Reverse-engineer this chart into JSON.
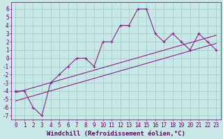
{
  "xlabel": "Windchill (Refroidissement éolien,°C)",
  "bg_color": "#c8e8e8",
  "grid_color": "#a0c8c8",
  "line_color": "#882288",
  "xlim": [
    -0.5,
    23.5
  ],
  "ylim": [
    -7.5,
    6.8
  ],
  "xticks": [
    0,
    1,
    2,
    3,
    4,
    5,
    6,
    7,
    8,
    9,
    10,
    11,
    12,
    13,
    14,
    15,
    16,
    17,
    18,
    19,
    20,
    21,
    22,
    23
  ],
  "yticks": [
    6,
    5,
    4,
    3,
    2,
    1,
    0,
    -1,
    -2,
    -3,
    -4,
    -5,
    -6,
    -7
  ],
  "measured_x": [
    0,
    1,
    2,
    3,
    4,
    5,
    6,
    7,
    8,
    9,
    10,
    11,
    12,
    13,
    14,
    15,
    16,
    17,
    18,
    19,
    20,
    21,
    22,
    23
  ],
  "measured_y": [
    -4,
    -4,
    -6,
    -7,
    -3,
    -2,
    -1,
    0,
    0,
    -1,
    2,
    2,
    4,
    4,
    6,
    6,
    3,
    2,
    3,
    2,
    1,
    3,
    2,
    1
  ],
  "line1_x": [
    0,
    23
  ],
  "line1_y": [
    -5.2,
    1.8
  ],
  "line2_x": [
    0,
    23
  ],
  "line2_y": [
    -4.2,
    2.8
  ],
  "font_color": "#660066",
  "tick_label_size": 5.5,
  "xlabel_size": 6.5
}
